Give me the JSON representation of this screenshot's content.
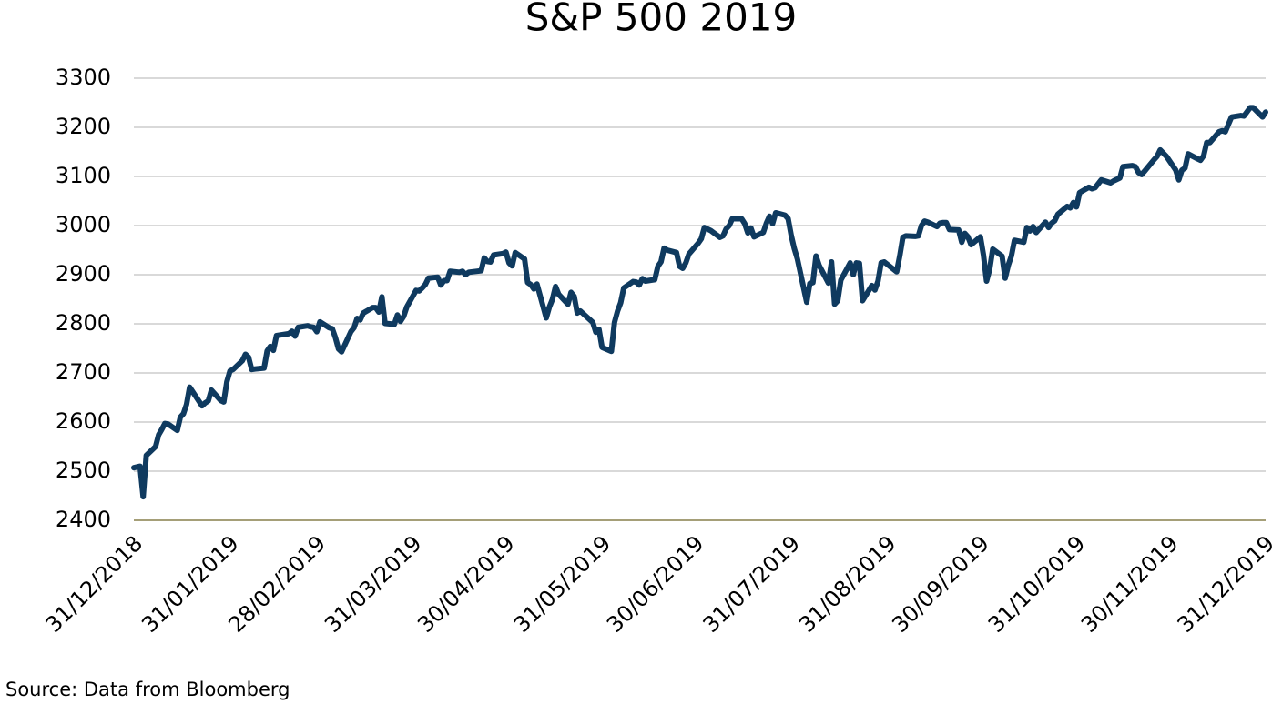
{
  "chart_data": {
    "type": "line",
    "title": "S&P 500 2019",
    "source": "Source: Data from Bloomberg",
    "color": "#0f3a5f",
    "grid": true,
    "x": [
      "31/12/2018",
      "02/01/2019",
      "03/01/2019",
      "04/01/2019",
      "07/01/2019",
      "08/01/2019",
      "09/01/2019",
      "10/01/2019",
      "11/01/2019",
      "14/01/2019",
      "15/01/2019",
      "16/01/2019",
      "17/01/2019",
      "18/01/2019",
      "22/01/2019",
      "23/01/2019",
      "24/01/2019",
      "25/01/2019",
      "28/01/2019",
      "29/01/2019",
      "30/01/2019",
      "31/01/2019",
      "01/02/2019",
      "04/02/2019",
      "05/02/2019",
      "06/02/2019",
      "07/02/2019",
      "08/02/2019",
      "11/02/2019",
      "12/02/2019",
      "13/02/2019",
      "14/02/2019",
      "15/02/2019",
      "19/02/2019",
      "20/02/2019",
      "21/02/2019",
      "22/02/2019",
      "25/02/2019",
      "26/02/2019",
      "27/02/2019",
      "28/02/2019",
      "01/03/2019",
      "04/03/2019",
      "05/03/2019",
      "06/03/2019",
      "07/03/2019",
      "08/03/2019",
      "11/03/2019",
      "12/03/2019",
      "13/03/2019",
      "14/03/2019",
      "15/03/2019",
      "18/03/2019",
      "19/03/2019",
      "20/03/2019",
      "21/03/2019",
      "22/03/2019",
      "25/03/2019",
      "26/03/2019",
      "27/03/2019",
      "28/03/2019",
      "29/03/2019",
      "01/04/2019",
      "02/04/2019",
      "03/04/2019",
      "04/04/2019",
      "05/04/2019",
      "08/04/2019",
      "09/04/2019",
      "10/04/2019",
      "11/04/2019",
      "12/04/2019",
      "15/04/2019",
      "16/04/2019",
      "17/04/2019",
      "18/04/2019",
      "22/04/2019",
      "23/04/2019",
      "24/04/2019",
      "25/04/2019",
      "26/04/2019",
      "29/04/2019",
      "30/04/2019",
      "01/05/2019",
      "02/05/2019",
      "03/05/2019",
      "06/05/2019",
      "07/05/2019",
      "08/05/2019",
      "09/05/2019",
      "10/05/2019",
      "13/05/2019",
      "14/05/2019",
      "15/05/2019",
      "16/05/2019",
      "17/05/2019",
      "20/05/2019",
      "21/05/2019",
      "22/05/2019",
      "23/05/2019",
      "24/05/2019",
      "28/05/2019",
      "29/05/2019",
      "30/05/2019",
      "31/05/2019",
      "03/06/2019",
      "04/06/2019",
      "05/06/2019",
      "06/06/2019",
      "07/06/2019",
      "10/06/2019",
      "11/06/2019",
      "12/06/2019",
      "13/06/2019",
      "14/06/2019",
      "17/06/2019",
      "18/06/2019",
      "19/06/2019",
      "20/06/2019",
      "21/06/2019",
      "24/06/2019",
      "25/06/2019",
      "26/06/2019",
      "27/06/2019",
      "28/06/2019",
      "01/07/2019",
      "02/07/2019",
      "03/07/2019",
      "05/07/2019",
      "08/07/2019",
      "09/07/2019",
      "10/07/2019",
      "11/07/2019",
      "12/07/2019",
      "15/07/2019",
      "16/07/2019",
      "17/07/2019",
      "18/07/2019",
      "19/07/2019",
      "22/07/2019",
      "23/07/2019",
      "24/07/2019",
      "25/07/2019",
      "26/07/2019",
      "29/07/2019",
      "30/07/2019",
      "31/07/2019",
      "01/08/2019",
      "02/08/2019",
      "05/08/2019",
      "06/08/2019",
      "07/08/2019",
      "08/08/2019",
      "09/08/2019",
      "12/08/2019",
      "13/08/2019",
      "14/08/2019",
      "15/08/2019",
      "16/08/2019",
      "19/08/2019",
      "20/08/2019",
      "21/08/2019",
      "22/08/2019",
      "23/08/2019",
      "26/08/2019",
      "27/08/2019",
      "28/08/2019",
      "29/08/2019",
      "30/08/2019",
      "03/09/2019",
      "04/09/2019",
      "05/09/2019",
      "06/09/2019",
      "09/09/2019",
      "10/09/2019",
      "11/09/2019",
      "12/09/2019",
      "13/09/2019",
      "16/09/2019",
      "17/09/2019",
      "18/09/2019",
      "19/09/2019",
      "20/09/2019",
      "23/09/2019",
      "24/09/2019",
      "25/09/2019",
      "26/09/2019",
      "27/09/2019",
      "30/09/2019",
      "01/10/2019",
      "02/10/2019",
      "03/10/2019",
      "04/10/2019",
      "07/10/2019",
      "08/10/2019",
      "09/10/2019",
      "10/10/2019",
      "11/10/2019",
      "14/10/2019",
      "15/10/2019",
      "16/10/2019",
      "17/10/2019",
      "18/10/2019",
      "21/10/2019",
      "22/10/2019",
      "23/10/2019",
      "24/10/2019",
      "25/10/2019",
      "28/10/2019",
      "29/10/2019",
      "30/10/2019",
      "31/10/2019",
      "01/11/2019",
      "04/11/2019",
      "05/11/2019",
      "06/11/2019",
      "07/11/2019",
      "08/11/2019",
      "11/11/2019",
      "12/11/2019",
      "13/11/2019",
      "14/11/2019",
      "15/11/2019",
      "18/11/2019",
      "19/11/2019",
      "20/11/2019",
      "21/11/2019",
      "22/11/2019",
      "25/11/2019",
      "26/11/2019",
      "27/11/2019",
      "29/11/2019",
      "02/12/2019",
      "03/12/2019",
      "04/12/2019",
      "05/12/2019",
      "06/12/2019",
      "09/12/2019",
      "10/12/2019",
      "11/12/2019",
      "12/12/2019",
      "13/12/2019",
      "16/12/2019",
      "17/12/2019",
      "18/12/2019",
      "19/12/2019",
      "20/12/2019",
      "23/12/2019",
      "24/12/2019",
      "26/12/2019",
      "27/12/2019",
      "30/12/2019",
      "31/12/2019"
    ],
    "values": [
      2507,
      2510,
      2448,
      2532,
      2550,
      2574,
      2585,
      2597,
      2596,
      2583,
      2610,
      2617,
      2636,
      2671,
      2633,
      2639,
      2643,
      2665,
      2644,
      2641,
      2682,
      2704,
      2707,
      2725,
      2738,
      2732,
      2707,
      2708,
      2710,
      2745,
      2754,
      2746,
      2776,
      2780,
      2785,
      2775,
      2793,
      2796,
      2794,
      2793,
      2784,
      2804,
      2792,
      2790,
      2772,
      2749,
      2743,
      2784,
      2792,
      2811,
      2808,
      2822,
      2833,
      2833,
      2824,
      2855,
      2801,
      2799,
      2818,
      2805,
      2815,
      2834,
      2868,
      2867,
      2873,
      2880,
      2893,
      2895,
      2879,
      2888,
      2888,
      2907,
      2905,
      2907,
      2900,
      2905,
      2908,
      2934,
      2927,
      2926,
      2940,
      2943,
      2946,
      2924,
      2918,
      2945,
      2932,
      2884,
      2880,
      2871,
      2881,
      2812,
      2834,
      2850,
      2876,
      2860,
      2840,
      2864,
      2856,
      2822,
      2826,
      2803,
      2783,
      2789,
      2752,
      2744,
      2803,
      2826,
      2843,
      2873,
      2886,
      2885,
      2879,
      2892,
      2887,
      2890,
      2917,
      2926,
      2954,
      2950,
      2945,
      2917,
      2913,
      2924,
      2942,
      2964,
      2973,
      2996,
      2990,
      2976,
      2979,
      2993,
      3000,
      3014,
      3014,
      3004,
      2985,
      2995,
      2977,
      2986,
      3005,
      3019,
      3004,
      3026,
      3021,
      3014,
      2980,
      2953,
      2932,
      2844,
      2882,
      2884,
      2938,
      2919,
      2883,
      2926,
      2840,
      2847,
      2889,
      2924,
      2900,
      2924,
      2923,
      2847,
      2878,
      2869,
      2887,
      2924,
      2926,
      2906,
      2938,
      2976,
      2979,
      2978,
      2979,
      3000,
      3009,
      3007,
      2998,
      3005,
      3006,
      3006,
      2992,
      2991,
      2966,
      2984,
      2977,
      2961,
      2977,
      2940,
      2887,
      2911,
      2952,
      2938,
      2893,
      2919,
      2938,
      2970,
      2966,
      2996,
      2989,
      2998,
      2986,
      3007,
      2996,
      3005,
      3010,
      3023,
      3039,
      3036,
      3047,
      3038,
      3067,
      3078,
      3075,
      3077,
      3085,
      3093,
      3087,
      3091,
      3094,
      3097,
      3120,
      3122,
      3120,
      3108,
      3104,
      3111,
      3134,
      3141,
      3154,
      3141,
      3113,
      3093,
      3113,
      3117,
      3146,
      3136,
      3133,
      3142,
      3169,
      3169,
      3191,
      3193,
      3191,
      3206,
      3221,
      3224,
      3223,
      3240,
      3240,
      3221,
      3231
    ],
    "xlim": [
      "31/12/2018",
      "31/12/2019"
    ],
    "xticks": [
      "31/12/2018",
      "31/01/2019",
      "28/02/2019",
      "31/03/2019",
      "30/04/2019",
      "31/05/2019",
      "30/06/2019",
      "31/07/2019",
      "31/08/2019",
      "30/09/2019",
      "31/10/2019",
      "30/11/2019",
      "31/12/2019"
    ],
    "ylim": [
      2400,
      3300
    ],
    "yticks": [
      2400,
      2500,
      2600,
      2700,
      2800,
      2900,
      3000,
      3100,
      3200,
      3300
    ]
  }
}
